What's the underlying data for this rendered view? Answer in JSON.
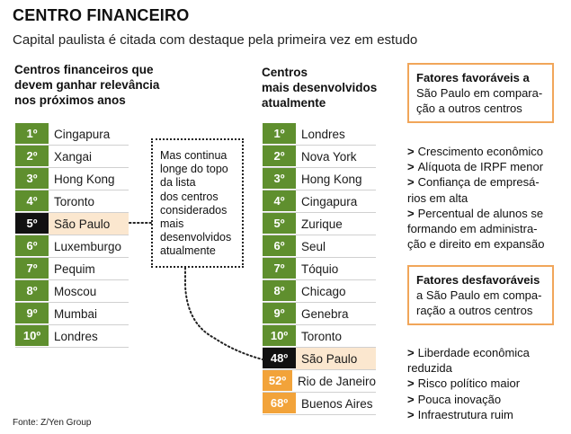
{
  "title": "CENTRO FINANCEIRO",
  "subtitle": "Capital paulista é citada com destaque pela primeira vez em estudo",
  "left_column": {
    "heading": [
      "Centros financeiros que",
      "devem ganhar relevância",
      "nos próximos anos"
    ],
    "items": [
      {
        "rank": "1º",
        "city": "Cingapura"
      },
      {
        "rank": "2º",
        "city": "Xangai"
      },
      {
        "rank": "3º",
        "city": "Hong Kong"
      },
      {
        "rank": "4º",
        "city": "Toronto"
      },
      {
        "rank": "5º",
        "city": "São Paulo"
      },
      {
        "rank": "6º",
        "city": "Luxemburgo"
      },
      {
        "rank": "7º",
        "city": "Pequim"
      },
      {
        "rank": "8º",
        "city": "Moscou"
      },
      {
        "rank": "9º",
        "city": "Mumbai"
      },
      {
        "rank": "10º",
        "city": "Londres"
      }
    ]
  },
  "middle_column": {
    "heading": [
      "Centros",
      "mais desenvolvidos",
      "atualmente"
    ],
    "items": [
      {
        "rank": "1º",
        "city": "Londres"
      },
      {
        "rank": "2º",
        "city": "Nova York"
      },
      {
        "rank": "3º",
        "city": "Hong Kong"
      },
      {
        "rank": "4º",
        "city": "Cingapura"
      },
      {
        "rank": "5º",
        "city": "Zurique"
      },
      {
        "rank": "6º",
        "city": "Seul"
      },
      {
        "rank": "7º",
        "city": "Tóquio"
      },
      {
        "rank": "8º",
        "city": "Chicago"
      },
      {
        "rank": "9º",
        "city": "Genebra"
      },
      {
        "rank": "10º",
        "city": "Toronto"
      },
      {
        "rank": "48º",
        "city": "São Paulo"
      },
      {
        "rank": "52º",
        "city": "Rio de Janeiro"
      },
      {
        "rank": "68º",
        "city": "Buenos Aires"
      }
    ]
  },
  "annotation": [
    "Mas continua",
    "longe do topo",
    "da lista",
    "dos centros",
    "considerados",
    "mais",
    "desenvolvidos",
    "atualmente"
  ],
  "favorable": {
    "header": [
      "Fatores favoráveis a",
      "São Paulo em compara-",
      "ção a outros centros"
    ],
    "items": [
      [
        "Crescimento econômico"
      ],
      [
        "Alíquota de IRPF menor"
      ],
      [
        "Confiança de empresá-",
        "rios em alta"
      ],
      [
        "Percentual de alunos se",
        "formando em administra-",
        "ção e direito em expansão"
      ]
    ]
  },
  "unfavorable": {
    "header": [
      "Fatores desfavoráveis",
      "a São Paulo em compa-",
      "ração a outros centros"
    ],
    "items": [
      [
        "Liberdade econômica",
        "reduzida"
      ],
      [
        "Risco político maior"
      ],
      [
        "Pouca inovação"
      ],
      [
        "Infraestrutura ruim"
      ]
    ]
  },
  "bullet_marker": ">",
  "source": "Fonte: Z/Yen Group",
  "colors": {
    "top10": "#5f8f2e",
    "sao_paulo_rank": "#111111",
    "other_rank": "#f2a33a",
    "highlight": "#fbe7cf",
    "box_border": "#f1a65a"
  }
}
